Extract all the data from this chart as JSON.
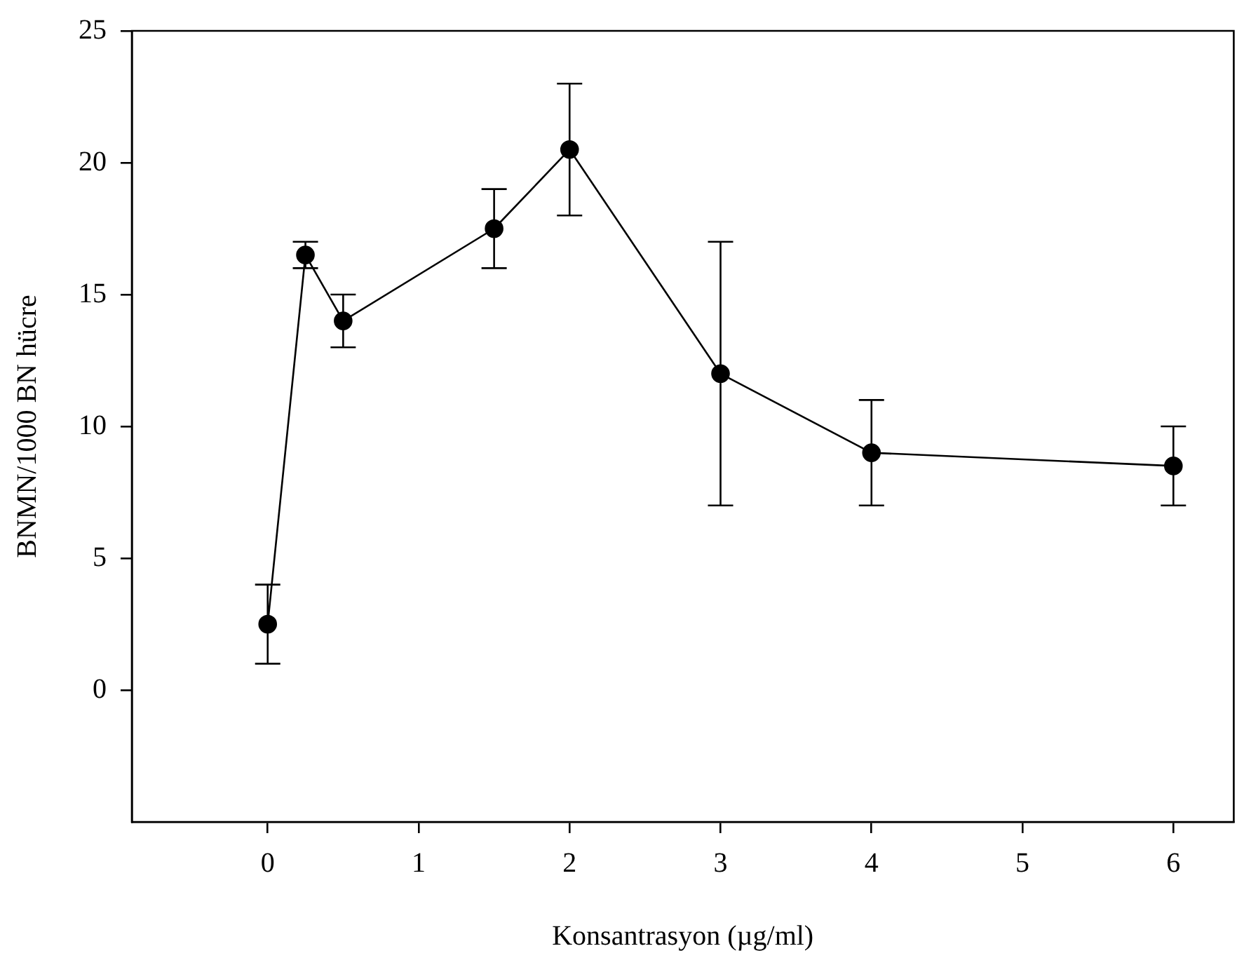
{
  "chart_data": {
    "type": "line",
    "xlabel": "Konsantrasyon (µg/ml)",
    "ylabel": "BNMN/1000 BN hücre",
    "x": [
      0,
      0.25,
      0.5,
      1.5,
      2,
      3,
      4,
      6
    ],
    "series": [
      {
        "color": "#000000",
        "values": [
          2.5,
          16.5,
          14,
          17.5,
          20.5,
          12,
          9,
          8.5
        ],
        "errors": [
          [
            1,
            4
          ],
          [
            16,
            17
          ],
          [
            13,
            15
          ],
          [
            16,
            19
          ],
          [
            18,
            23
          ],
          [
            7,
            17
          ],
          [
            7,
            11
          ],
          [
            7,
            10
          ]
        ]
      }
    ],
    "xlim": [
      -0.9,
      6.4
    ],
    "xticks": [
      0,
      1,
      2,
      3,
      4,
      5,
      6
    ],
    "ylim": [
      -5,
      25
    ],
    "yticks": [
      0,
      5,
      10,
      15,
      20,
      25
    ],
    "marker": "circle",
    "line_style": "solid",
    "grid": false,
    "legend": false
  }
}
